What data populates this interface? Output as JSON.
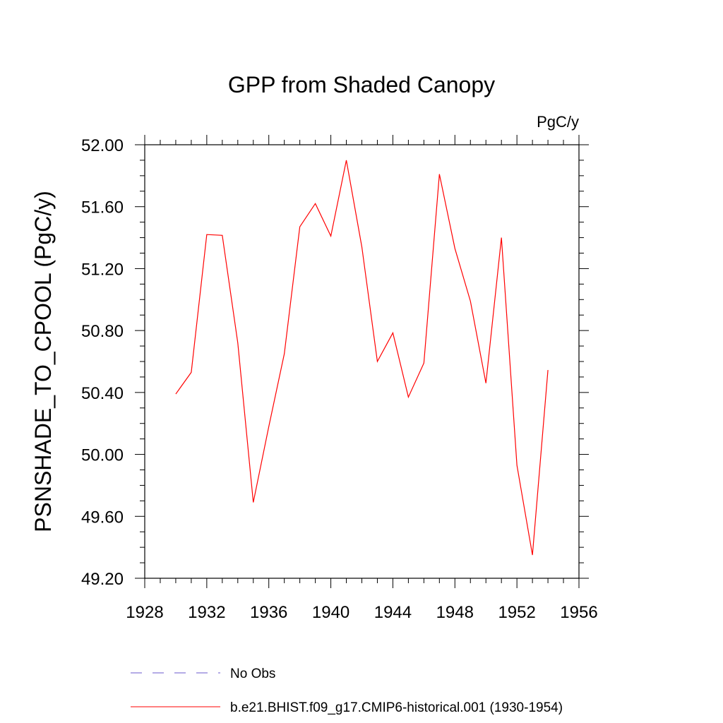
{
  "chart_data": {
    "type": "line",
    "title": "GPP from Shaded Canopy",
    "units": "PgC/y",
    "xlabel": "",
    "ylabel": "PSNSHADE_TO_CPOOL  (PgC/y)",
    "xlim": [
      1928,
      1956
    ],
    "ylim": [
      49.2,
      52.0
    ],
    "xticks": [
      1928,
      1932,
      1936,
      1940,
      1944,
      1948,
      1952,
      1956
    ],
    "xtick_labels": [
      "1928",
      "1932",
      "1936",
      "1940",
      "1944",
      "1948",
      "1952",
      "1956"
    ],
    "yticks": [
      49.2,
      49.6,
      50.0,
      50.4,
      50.8,
      51.2,
      51.6,
      52.0
    ],
    "ytick_labels": [
      "49.20",
      "49.60",
      "50.00",
      "50.40",
      "50.80",
      "51.20",
      "51.60",
      "52.00"
    ],
    "x_minor_step": 1,
    "y_minor_step": 0.1,
    "grid": false,
    "series": [
      {
        "name": "b.e21.BHIST.f09_g17.CMIP6-historical.001 (1930-1954)",
        "color": "#ff0000",
        "style": "solid",
        "x": [
          1930,
          1931,
          1932,
          1933,
          1934,
          1935,
          1936,
          1937,
          1938,
          1939,
          1940,
          1941,
          1942,
          1943,
          1944,
          1945,
          1946,
          1947,
          1948,
          1949,
          1950,
          1951,
          1952,
          1953,
          1954
        ],
        "values": [
          50.39,
          50.53,
          51.42,
          51.415,
          50.72,
          49.69,
          50.18,
          50.65,
          51.47,
          51.62,
          51.41,
          51.9,
          51.34,
          50.6,
          50.785,
          50.37,
          50.59,
          51.81,
          51.33,
          50.99,
          50.46,
          51.4,
          49.93,
          49.35,
          50.545
        ]
      }
    ],
    "legend": [
      {
        "label": "No Obs",
        "color": "#6a5acd",
        "style": "dashed"
      },
      {
        "label": "b.e21.BHIST.f09_g17.CMIP6-historical.001 (1930-1954)",
        "color": "#ff0000",
        "style": "solid"
      }
    ],
    "legend_position": "bottom-center"
  }
}
